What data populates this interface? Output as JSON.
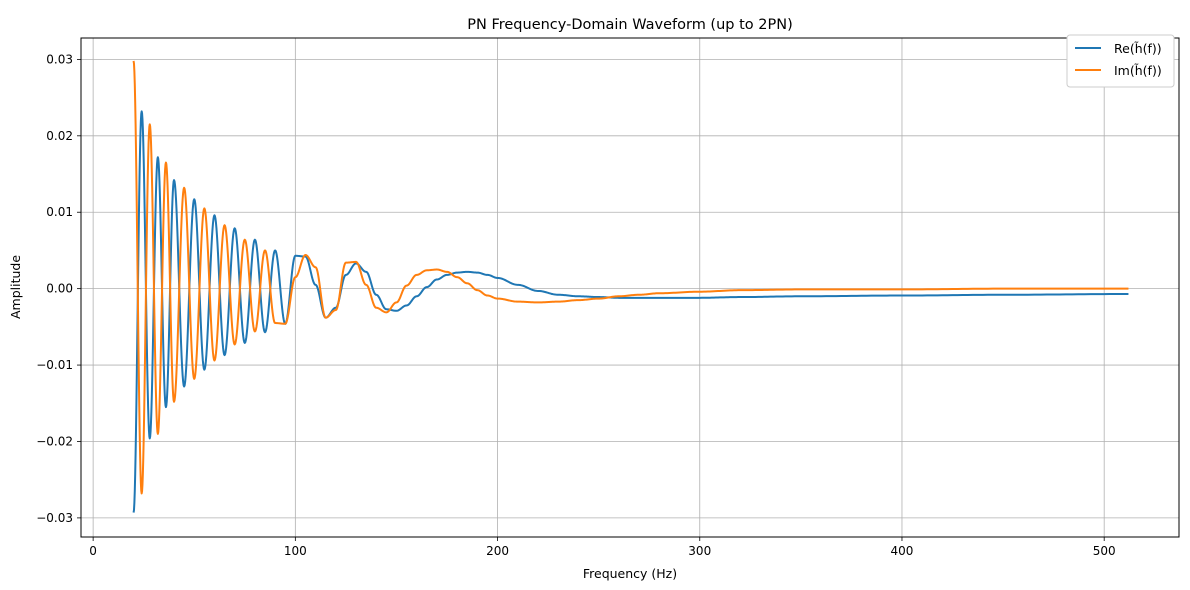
{
  "chart_data": {
    "type": "line",
    "title": "PN Frequency-Domain Waveform (up to 2PN)",
    "xlabel": "Frequency (Hz)",
    "ylabel": "Amplitude",
    "xlim": [
      -6,
      537
    ],
    "ylim": [
      -0.0325,
      0.0328
    ],
    "xticks": [
      0,
      100,
      200,
      300,
      400,
      500
    ],
    "xtick_labels": [
      "0",
      "100",
      "200",
      "300",
      "400",
      "500"
    ],
    "yticks": [
      -0.03,
      -0.02,
      -0.01,
      0.0,
      0.01,
      0.02,
      0.03
    ],
    "ytick_labels": [
      "−0.03",
      "−0.02",
      "−0.01",
      "0.00",
      "0.01",
      "0.02",
      "0.03"
    ],
    "grid": true,
    "legend_position": "top-right",
    "series": [
      {
        "name": "Re(h̃(f))",
        "color": "#1f77b4",
        "x": [
          20,
          24,
          28,
          32,
          36,
          40,
          45,
          50,
          55,
          60,
          65,
          70,
          75,
          80,
          85,
          90,
          95,
          100,
          105,
          110,
          115,
          120,
          125,
          130,
          135,
          140,
          145,
          150,
          155,
          160,
          165,
          170,
          175,
          180,
          185,
          190,
          195,
          200,
          210,
          220,
          230,
          240,
          250,
          260,
          270,
          280,
          300,
          320,
          350,
          400,
          450,
          512
        ],
        "y": [
          -0.0293,
          0.0232,
          -0.0196,
          0.0172,
          -0.0155,
          0.0142,
          -0.0128,
          0.0117,
          -0.0106,
          0.0096,
          -0.0087,
          0.0079,
          -0.0071,
          0.0064,
          -0.0057,
          0.005,
          -0.0046,
          0.0043,
          0.0042,
          0.0005,
          -0.0038,
          -0.0025,
          0.0018,
          0.0033,
          0.0022,
          -0.0008,
          -0.0027,
          -0.0029,
          -0.0022,
          -0.001,
          0.0002,
          0.0012,
          0.0018,
          0.0021,
          0.0022,
          0.0021,
          0.0018,
          0.0014,
          0.0005,
          -0.0003,
          -0.0008,
          -0.001,
          -0.0011,
          -0.0012,
          -0.0012,
          -0.0012,
          -0.0012,
          -0.0011,
          -0.001,
          -0.0009,
          -0.0008,
          -0.0007
        ]
      },
      {
        "name": "Im(h̃(f))",
        "color": "#ff7f0e",
        "x": [
          20,
          24,
          28,
          32,
          36,
          40,
          45,
          50,
          55,
          60,
          65,
          70,
          75,
          80,
          85,
          90,
          95,
          100,
          105,
          110,
          115,
          120,
          125,
          130,
          135,
          140,
          145,
          150,
          155,
          160,
          165,
          170,
          175,
          180,
          185,
          190,
          195,
          200,
          210,
          220,
          230,
          240,
          250,
          260,
          270,
          280,
          300,
          320,
          350,
          400,
          450,
          512
        ],
        "y": [
          0.0298,
          -0.0268,
          0.0215,
          -0.019,
          0.0165,
          -0.0148,
          0.0132,
          -0.0118,
          0.0105,
          -0.0094,
          0.0083,
          -0.0073,
          0.0064,
          -0.0056,
          0.005,
          -0.0045,
          -0.0046,
          0.0015,
          0.0044,
          0.0028,
          -0.0038,
          -0.0028,
          0.0034,
          0.0035,
          0.0005,
          -0.0025,
          -0.0031,
          -0.0018,
          0.0004,
          0.0018,
          0.0024,
          0.0025,
          0.0022,
          0.0015,
          0.0007,
          -0.0002,
          -0.0009,
          -0.0013,
          -0.0017,
          -0.0018,
          -0.0017,
          -0.0015,
          -0.0013,
          -0.001,
          -0.0008,
          -0.0006,
          -0.0004,
          -0.0002,
          -0.0001,
          -0.0001,
          0.0,
          0.0
        ]
      }
    ]
  }
}
